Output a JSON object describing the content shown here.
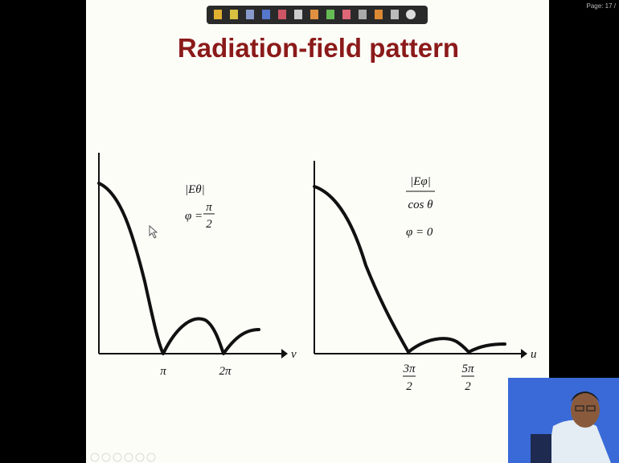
{
  "page_label": "Page: 17 /",
  "title": "Radiation-field pattern",
  "left_plot": {
    "label": "|Eθ|",
    "condition": {
      "lhs": "φ =",
      "numerator": "π",
      "denominator": "2"
    },
    "axis_label": "v",
    "ticks": [
      "π",
      "2π"
    ]
  },
  "right_plot": {
    "label": {
      "numerator": "|Eφ|",
      "denominator": "cos θ"
    },
    "condition": "φ = 0",
    "axis_label": "u",
    "ticks": [
      {
        "numerator": "3π",
        "denominator": "2"
      },
      {
        "numerator": "5π",
        "denominator": "2"
      }
    ]
  }
}
